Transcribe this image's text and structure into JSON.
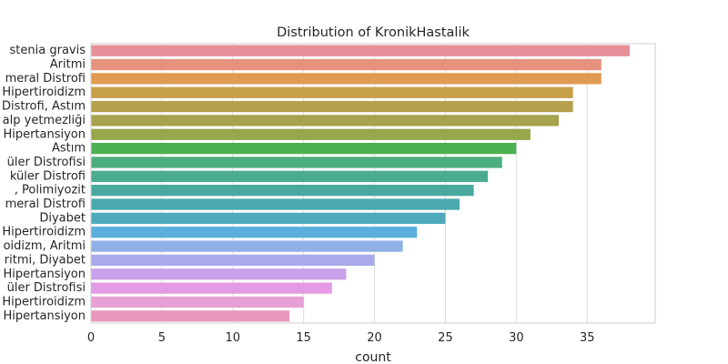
{
  "chart_data": {
    "type": "bar",
    "orientation": "horizontal",
    "title": "Distribution of KronikHastalik",
    "xlabel": "count",
    "ylabel": "",
    "xlim": [
      0,
      40
    ],
    "xticks": [
      0,
      5,
      10,
      15,
      20,
      25,
      30,
      35
    ],
    "grid": true,
    "categories": [
      "stenia gravis",
      "Aritmi",
      "meral Distrofi",
      "Hipertiroidizm",
      "Distrofi, Astım",
      "alp yetmezliği",
      "Hipertansiyon",
      "Astım",
      "üler Distrofisi",
      "küler Distrofi",
      ", Polimiyozit",
      "meral Distrofi",
      "Diyabet",
      "Hipertiroidizm",
      "oidizm, Aritmi",
      "ritmi, Diyabet",
      "Hipertansiyon",
      "üler Distrofisi",
      "Hipertiroidizm",
      "Hipertansiyon"
    ],
    "values": [
      38,
      36,
      36,
      34,
      34,
      33,
      31,
      30,
      29,
      28,
      27,
      26,
      25,
      23,
      22,
      20,
      18,
      17,
      15,
      14
    ],
    "colors": [
      "#e8909a",
      "#e7927e",
      "#e19a52",
      "#c8a04a",
      "#b5a14b",
      "#a7a24c",
      "#96a84a",
      "#4cb050",
      "#4cae7c",
      "#4aab8f",
      "#48a99f",
      "#4aa9ad",
      "#4dabbc",
      "#5aaedb",
      "#8fb1e6",
      "#aaa9ec",
      "#c8a1ea",
      "#e49ae4",
      "#e7a0d4",
      "#e898bd"
    ]
  }
}
